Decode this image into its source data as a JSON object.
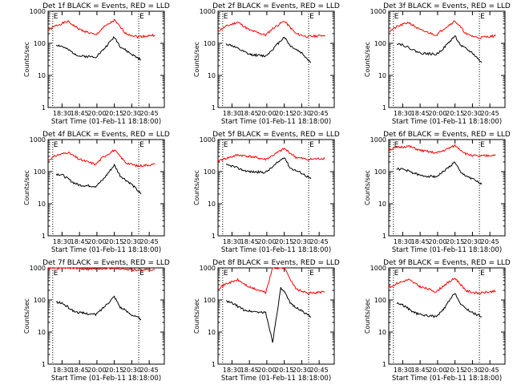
{
  "figure": {
    "background": "#ffffff",
    "axis_color": "#000000"
  },
  "chart_data": [
    {
      "type": "line",
      "title": "Det 1f BLACK = Events, RED = LLD",
      "xlabel": "Start Time (01-Feb-11 18:18:00)",
      "ylabel": "Counts/sec",
      "x_ticks": [
        "18:30",
        "18:45",
        "20:00",
        "20:15",
        "20:30",
        "20:45"
      ],
      "y_ticks": [
        "1",
        "10",
        "100",
        "1000"
      ],
      "y_scale": "log",
      "ylim": [
        1,
        1000
      ],
      "markers": [
        {
          "label": "E",
          "x": "18:22"
        },
        {
          "label": "E",
          "x": "20:36"
        }
      ],
      "series": [
        {
          "color": "#ff0000",
          "x": [
            "18:18",
            "18:25",
            "18:35",
            "18:45",
            "19:55",
            "20:05",
            "20:15",
            "20:25",
            "20:35",
            "20:50"
          ],
          "values": [
            250,
            360,
            480,
            270,
            180,
            300,
            520,
            200,
            160,
            180
          ]
        },
        {
          "color": "#000000",
          "x": [
            "18:25",
            "18:30",
            "18:40",
            "18:45",
            "19:55",
            "20:05",
            "20:15",
            "20:20",
            "20:30",
            "20:38"
          ],
          "values": [
            90,
            80,
            50,
            40,
            38,
            60,
            160,
            80,
            45,
            30
          ]
        }
      ]
    },
    {
      "type": "line",
      "title": "Det 2f BLACK = Events, RED = LLD",
      "xlabel": "Start Time (01-Feb-11 18:18:00)",
      "ylabel": "Counts/sec",
      "x_ticks": [
        "18:30",
        "18:45",
        "20:00",
        "20:15",
        "20:30",
        "20:45"
      ],
      "y_ticks": [
        "1",
        "10",
        "100",
        "1000"
      ],
      "y_scale": "log",
      "ylim": [
        1,
        1000
      ],
      "markers": [
        {
          "label": "E",
          "x": "18:22"
        },
        {
          "label": "E",
          "x": "20:36"
        }
      ],
      "series": [
        {
          "color": "#ff0000",
          "x": [
            "18:18",
            "18:25",
            "18:35",
            "18:45",
            "19:55",
            "20:05",
            "20:15",
            "20:25",
            "20:35",
            "20:50"
          ],
          "values": [
            240,
            340,
            460,
            260,
            180,
            290,
            500,
            200,
            160,
            180
          ]
        },
        {
          "color": "#000000",
          "x": [
            "18:25",
            "18:30",
            "18:40",
            "18:45",
            "19:55",
            "20:05",
            "20:15",
            "20:20",
            "20:30",
            "20:38"
          ],
          "values": [
            95,
            85,
            55,
            45,
            40,
            65,
            160,
            85,
            50,
            25
          ]
        }
      ]
    },
    {
      "type": "line",
      "title": "Det 3f BLACK = Events, RED = LLD",
      "xlabel": "Start Time (01-Feb-11 18:18:00)",
      "ylabel": "Counts/sec",
      "x_ticks": [
        "18:30",
        "18:45",
        "20:00",
        "20:15",
        "20:30",
        "20:45"
      ],
      "y_ticks": [
        "1",
        "10",
        "100",
        "1000"
      ],
      "y_scale": "log",
      "ylim": [
        1,
        1000
      ],
      "markers": [
        {
          "label": "E",
          "x": "18:22"
        },
        {
          "label": "E",
          "x": "20:36"
        }
      ],
      "series": [
        {
          "color": "#ff0000",
          "x": [
            "18:18",
            "18:25",
            "18:35",
            "18:45",
            "19:55",
            "20:05",
            "20:15",
            "20:25",
            "20:35",
            "20:50"
          ],
          "values": [
            230,
            330,
            450,
            260,
            180,
            280,
            500,
            190,
            150,
            170
          ]
        },
        {
          "color": "#000000",
          "x": [
            "18:25",
            "18:30",
            "18:40",
            "18:45",
            "19:55",
            "20:05",
            "20:15",
            "20:20",
            "20:30",
            "20:38"
          ],
          "values": [
            100,
            90,
            60,
            50,
            45,
            70,
            170,
            85,
            50,
            25
          ]
        }
      ]
    },
    {
      "type": "line",
      "title": "Det 4f BLACK = Events, RED = LLD",
      "xlabel": "Start Time (01-Feb-11 18:18:00)",
      "ylabel": "Counts/sec",
      "x_ticks": [
        "18:30",
        "18:45",
        "20:00",
        "20:15",
        "20:30",
        "20:45"
      ],
      "y_ticks": [
        "1",
        "10",
        "100",
        "1000"
      ],
      "y_scale": "log",
      "ylim": [
        1,
        1000
      ],
      "markers": [
        {
          "label": "E",
          "x": "18:22"
        },
        {
          "label": "E",
          "x": "20:36"
        }
      ],
      "series": [
        {
          "color": "#ff0000",
          "x": [
            "18:18",
            "18:25",
            "18:35",
            "18:45",
            "19:55",
            "20:05",
            "20:15",
            "20:25",
            "20:35",
            "20:50"
          ],
          "values": [
            230,
            320,
            400,
            240,
            170,
            280,
            470,
            190,
            150,
            170
          ]
        },
        {
          "color": "#000000",
          "x": [
            "18:25",
            "18:30",
            "18:40",
            "18:45",
            "19:55",
            "20:05",
            "20:15",
            "20:20",
            "20:30",
            "20:38"
          ],
          "values": [
            85,
            80,
            45,
            38,
            35,
            55,
            160,
            75,
            40,
            20
          ]
        }
      ]
    },
    {
      "type": "line",
      "title": "Det 5f BLACK = Events, RED = LLD",
      "xlabel": "Start Time (01-Feb-11 18:18:00)",
      "ylabel": "Counts/sec",
      "x_ticks": [
        "18:30",
        "18:45",
        "20:00",
        "20:15",
        "20:30",
        "20:45"
      ],
      "y_ticks": [
        "1",
        "10",
        "100",
        "1000"
      ],
      "y_scale": "log",
      "ylim": [
        1,
        1000
      ],
      "markers": [
        {
          "label": "E",
          "x": "18:22"
        },
        {
          "label": "E",
          "x": "20:36"
        }
      ],
      "series": [
        {
          "color": "#ff0000",
          "x": [
            "18:18",
            "18:25",
            "18:35",
            "18:45",
            "19:55",
            "20:05",
            "20:15",
            "20:25",
            "20:35",
            "20:50"
          ],
          "values": [
            220,
            260,
            330,
            300,
            240,
            320,
            520,
            280,
            240,
            260
          ]
        },
        {
          "color": "#000000",
          "x": [
            "18:25",
            "18:30",
            "18:40",
            "18:45",
            "19:55",
            "20:05",
            "20:15",
            "20:20",
            "20:30",
            "20:38"
          ],
          "values": [
            160,
            150,
            110,
            100,
            95,
            140,
            290,
            130,
            90,
            60
          ]
        }
      ]
    },
    {
      "type": "line",
      "title": "Det 6f BLACK = Events, RED = LLD",
      "xlabel": "Start Time (01-Feb-11 18:18:00)",
      "ylabel": "Counts/sec",
      "x_ticks": [
        "18:30",
        "18:45",
        "20:00",
        "20:15",
        "20:30",
        "20:45"
      ],
      "y_ticks": [
        "1",
        "10",
        "100",
        "1000"
      ],
      "y_scale": "log",
      "ylim": [
        1,
        1000
      ],
      "markers": [
        {
          "label": "E",
          "x": "18:22"
        },
        {
          "label": "E",
          "x": "20:36"
        }
      ],
      "series": [
        {
          "color": "#ff0000",
          "x": [
            "18:18",
            "18:25",
            "18:35",
            "18:45",
            "19:55",
            "20:05",
            "20:15",
            "20:25",
            "20:35",
            "20:50"
          ],
          "values": [
            480,
            560,
            620,
            460,
            380,
            450,
            650,
            350,
            300,
            330
          ]
        },
        {
          "color": "#000000",
          "x": [
            "18:25",
            "18:30",
            "18:40",
            "18:45",
            "19:55",
            "20:05",
            "20:15",
            "20:20",
            "20:30",
            "20:38"
          ],
          "values": [
            120,
            120,
            90,
            75,
            70,
            100,
            200,
            90,
            60,
            40
          ]
        }
      ]
    },
    {
      "type": "line",
      "title": "Det 7f BLACK = Events, RED = LLD",
      "xlabel": "Start Time (01-Feb-11 18:18:00)",
      "ylabel": "Counts/sec",
      "x_ticks": [
        "18:30",
        "18:45",
        "20:00",
        "20:15",
        "20:30",
        "20:45"
      ],
      "y_ticks": [
        "1",
        "10",
        "100",
        "1000"
      ],
      "y_scale": "log",
      "ylim": [
        1,
        1000
      ],
      "markers": [
        {
          "label": "E",
          "x": "18:22"
        },
        {
          "label": "E",
          "x": "20:36"
        }
      ],
      "series": [
        {
          "color": "#ff0000",
          "x": [
            "18:18",
            "18:25",
            "18:35",
            "18:45",
            "19:55",
            "20:05",
            "20:15",
            "20:25",
            "20:35",
            "20:50"
          ],
          "values": [
            950,
            980,
            1000,
            950,
            900,
            950,
            1000,
            900,
            850,
            900
          ]
        },
        {
          "color": "#000000",
          "x": [
            "18:25",
            "18:30",
            "18:40",
            "18:45",
            "19:55",
            "20:05",
            "20:15",
            "20:20",
            "20:30",
            "20:38"
          ],
          "values": [
            85,
            80,
            45,
            40,
            35,
            55,
            130,
            60,
            35,
            25
          ]
        }
      ]
    },
    {
      "type": "line",
      "title": "Det 8f BLACK = Events, RED = LLD",
      "xlabel": "Start Time (01-Feb-11 18:18:00)",
      "ylabel": "Counts/sec",
      "x_ticks": [
        "18:30",
        "18:45",
        "20:00",
        "20:15",
        "20:30",
        "20:45"
      ],
      "y_ticks": [
        "1",
        "10",
        "100",
        "1000"
      ],
      "y_scale": "log",
      "ylim": [
        1,
        1000
      ],
      "markers": [
        {
          "label": "E",
          "x": "18:22"
        },
        {
          "label": "E",
          "x": "20:36"
        }
      ],
      "series": [
        {
          "color": "#ff0000",
          "x": [
            "18:18",
            "18:25",
            "18:35",
            "18:45",
            "19:55",
            "20:05",
            "20:10",
            "20:15",
            "20:25",
            "20:35",
            "20:50"
          ],
          "values": [
            230,
            320,
            420,
            250,
            170,
            1000,
            1000,
            1000,
            220,
            160,
            180
          ]
        },
        {
          "color": "#000000",
          "x": [
            "18:25",
            "18:30",
            "18:40",
            "18:45",
            "19:55",
            "20:05",
            "20:12",
            "20:15",
            "20:20",
            "20:30",
            "20:38"
          ],
          "values": [
            90,
            80,
            50,
            45,
            40,
            5,
            230,
            180,
            80,
            45,
            30
          ]
        }
      ]
    },
    {
      "type": "line",
      "title": "Det 9f BLACK = Events, RED = LLD",
      "xlabel": "Start Time (01-Feb-11 18:18:00)",
      "ylabel": "Counts/sec",
      "x_ticks": [
        "18:30",
        "18:45",
        "20:00",
        "20:15",
        "20:30",
        "20:45"
      ],
      "y_ticks": [
        "1",
        "10",
        "100",
        "1000"
      ],
      "y_scale": "log",
      "ylim": [
        1,
        1000
      ],
      "markers": [
        {
          "label": "E",
          "x": "18:22"
        },
        {
          "label": "E",
          "x": "20:36"
        }
      ],
      "series": [
        {
          "color": "#ff0000",
          "x": [
            "18:18",
            "18:25",
            "18:35",
            "18:45",
            "19:55",
            "20:05",
            "20:15",
            "20:25",
            "20:35",
            "20:50"
          ],
          "values": [
            240,
            330,
            430,
            260,
            180,
            280,
            480,
            190,
            160,
            190
          ]
        },
        {
          "color": "#000000",
          "x": [
            "18:25",
            "18:30",
            "18:40",
            "18:45",
            "19:55",
            "20:05",
            "20:15",
            "20:20",
            "20:30",
            "20:38"
          ],
          "values": [
            80,
            70,
            40,
            35,
            30,
            50,
            170,
            70,
            40,
            30
          ]
        }
      ]
    }
  ]
}
